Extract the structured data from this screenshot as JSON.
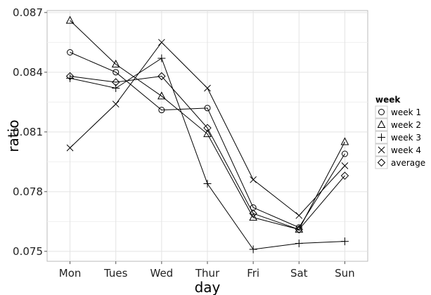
{
  "chart_data": {
    "type": "line",
    "xlabel": "day",
    "ylabel": "ratio",
    "categories": [
      "Mon",
      "Tues",
      "Wed",
      "Thur",
      "Fri",
      "Sat",
      "Sun"
    ],
    "ylim": [
      0.0745,
      0.0871
    ],
    "y_ticks": [
      "0.075",
      "0.078",
      "0.081",
      "0.084",
      "0.087"
    ],
    "grid": true,
    "legend": {
      "title": "week",
      "position": "right"
    },
    "series": [
      {
        "name": "week 1",
        "marker": "circle",
        "values": [
          0.085,
          0.084,
          0.0821,
          0.0822,
          0.0772,
          0.0762,
          0.0799
        ]
      },
      {
        "name": "week 2",
        "marker": "triangle",
        "values": [
          0.0866,
          0.0844,
          0.0828,
          0.0809,
          0.0767,
          0.0761,
          0.0805
        ]
      },
      {
        "name": "week 3",
        "marker": "plus",
        "values": [
          0.0837,
          0.0832,
          0.0847,
          0.0784,
          0.0751,
          0.0754,
          0.0755
        ]
      },
      {
        "name": "week 4",
        "marker": "cross",
        "values": [
          0.0802,
          0.0824,
          0.0855,
          0.0832,
          0.0786,
          0.0768,
          0.0793
        ]
      },
      {
        "name": "average",
        "marker": "diamond",
        "values": [
          0.0838,
          0.0835,
          0.0838,
          0.0812,
          0.0769,
          0.0761,
          0.0788
        ]
      }
    ]
  }
}
